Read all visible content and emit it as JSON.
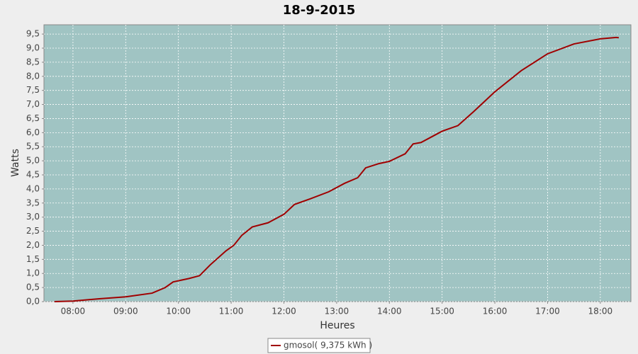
{
  "chart_data": {
    "type": "line",
    "title": "18-9-2015",
    "xlabel": "Heures",
    "ylabel": "Watts",
    "x": [
      7.65,
      8.0,
      8.5,
      9.0,
      9.5,
      9.75,
      9.9,
      10.2,
      10.4,
      10.6,
      10.9,
      11.05,
      11.2,
      11.4,
      11.7,
      12.0,
      12.2,
      12.5,
      12.85,
      13.15,
      13.4,
      13.55,
      13.8,
      14.0,
      14.3,
      14.45,
      14.6,
      14.8,
      15.0,
      15.3,
      15.6,
      16.0,
      16.5,
      17.0,
      17.5,
      18.0,
      18.3,
      18.35
    ],
    "series": [
      {
        "name": "gmosol( 9,375 kWh )",
        "color": "#a00000",
        "values": [
          0,
          0.02,
          0.1,
          0.17,
          0.3,
          0.5,
          0.7,
          0.82,
          0.92,
          1.3,
          1.8,
          2.0,
          2.35,
          2.65,
          2.8,
          3.1,
          3.45,
          3.65,
          3.9,
          4.2,
          4.4,
          4.75,
          4.9,
          4.98,
          5.25,
          5.6,
          5.65,
          5.85,
          6.05,
          6.25,
          6.75,
          7.45,
          8.2,
          8.8,
          9.15,
          9.33,
          9.38,
          9.37
        ]
      }
    ],
    "xlim": [
      7.45,
      18.58
    ],
    "ylim": [
      0,
      9.83
    ],
    "xticks": [
      {
        "value": 8,
        "label": "08:00"
      },
      {
        "value": 9,
        "label": "09:00"
      },
      {
        "value": 10,
        "label": "10:00"
      },
      {
        "value": 11,
        "label": "11:00"
      },
      {
        "value": 12,
        "label": "12:00"
      },
      {
        "value": 13,
        "label": "13:00"
      },
      {
        "value": 14,
        "label": "14:00"
      },
      {
        "value": 15,
        "label": "15:00"
      },
      {
        "value": 16,
        "label": "16:00"
      },
      {
        "value": 17,
        "label": "17:00"
      },
      {
        "value": 18,
        "label": "18:00"
      }
    ],
    "yticks": [
      {
        "value": 0,
        "label": "0,0"
      },
      {
        "value": 0.5,
        "label": "0,5"
      },
      {
        "value": 1,
        "label": "1,0"
      },
      {
        "value": 1.5,
        "label": "1,5"
      },
      {
        "value": 2,
        "label": "2,0"
      },
      {
        "value": 2.5,
        "label": "2,5"
      },
      {
        "value": 3,
        "label": "3,0"
      },
      {
        "value": 3.5,
        "label": "3,5"
      },
      {
        "value": 4,
        "label": "4,0"
      },
      {
        "value": 4.5,
        "label": "4,5"
      },
      {
        "value": 5,
        "label": "5,0"
      },
      {
        "value": 5.5,
        "label": "5,5"
      },
      {
        "value": 6,
        "label": "6,0"
      },
      {
        "value": 6.5,
        "label": "6,5"
      },
      {
        "value": 7,
        "label": "7,0"
      },
      {
        "value": 7.5,
        "label": "7,5"
      },
      {
        "value": 8,
        "label": "8,0"
      },
      {
        "value": 8.5,
        "label": "8,5"
      },
      {
        "value": 9,
        "label": "9,0"
      },
      {
        "value": 9.5,
        "label": "9,5"
      }
    ],
    "grid": true,
    "background": "#a0c4c3",
    "legend": "bottom"
  }
}
